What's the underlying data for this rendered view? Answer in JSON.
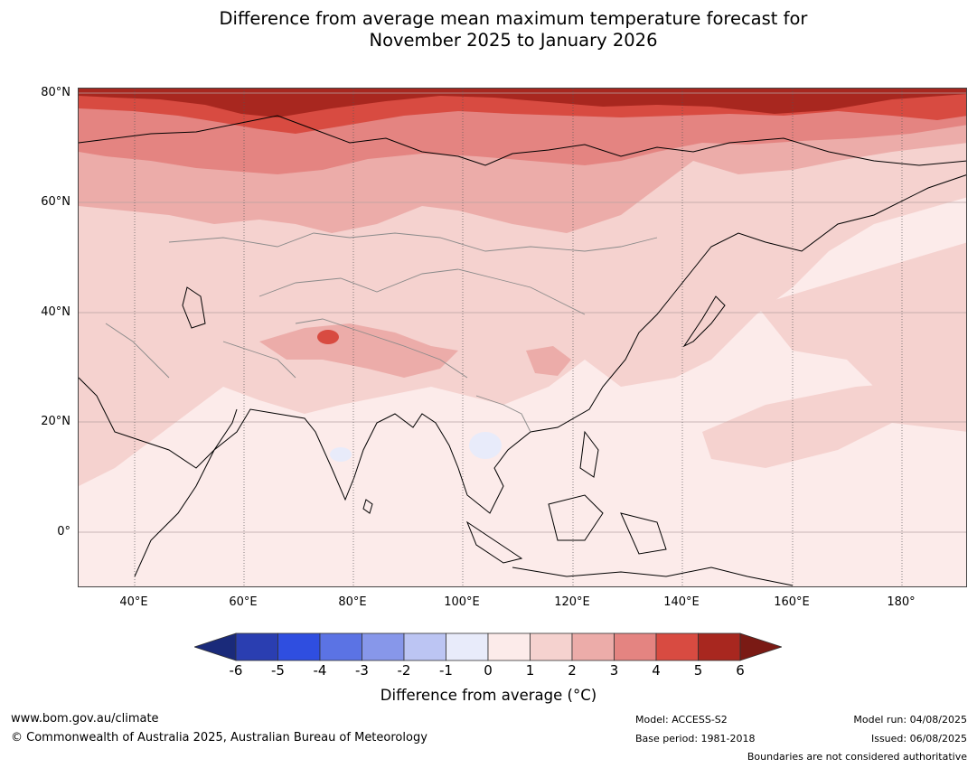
{
  "title": {
    "line1": "Difference from average mean maximum temperature forecast for",
    "line2": "November 2025 to January 2026"
  },
  "map": {
    "lat_labels": [
      "80°N",
      "60°N",
      "40°N",
      "20°N",
      "0°"
    ],
    "lon_labels": [
      "40°E",
      "60°E",
      "80°E",
      "100°E",
      "120°E",
      "140°E",
      "160°E",
      "180°"
    ],
    "coastline_color": "#000000",
    "border_color": "#808080"
  },
  "colorbar": {
    "ticks": [
      "-6",
      "-5",
      "-4",
      "-3",
      "-2",
      "-1",
      "0",
      "1",
      "2",
      "3",
      "4",
      "5",
      "6"
    ],
    "colors": [
      "#2a3eb1",
      "#2f4ee0",
      "#5b73e4",
      "#8797ea",
      "#bcc5f3",
      "#e8ebfa",
      "#fcebea",
      "#f5d2cf",
      "#ecaca9",
      "#e48481",
      "#d84b41",
      "#a8271f"
    ],
    "extend_low_color": "#1a2a7a",
    "extend_high_color": "#7a1a14",
    "label": "Difference from average (°C)"
  },
  "footer": {
    "website": "www.bom.gov.au/climate",
    "copyright": "© Commonwealth of Australia 2025, Australian Bureau of Meteorology",
    "model": "Model: ACCESS-S2",
    "base_period": "Base period: 1981-2018",
    "model_run": "Model run: 04/08/2025",
    "issued": "Issued: 06/08/2025",
    "disclaimer": "Boundaries are not considered authoritative"
  }
}
